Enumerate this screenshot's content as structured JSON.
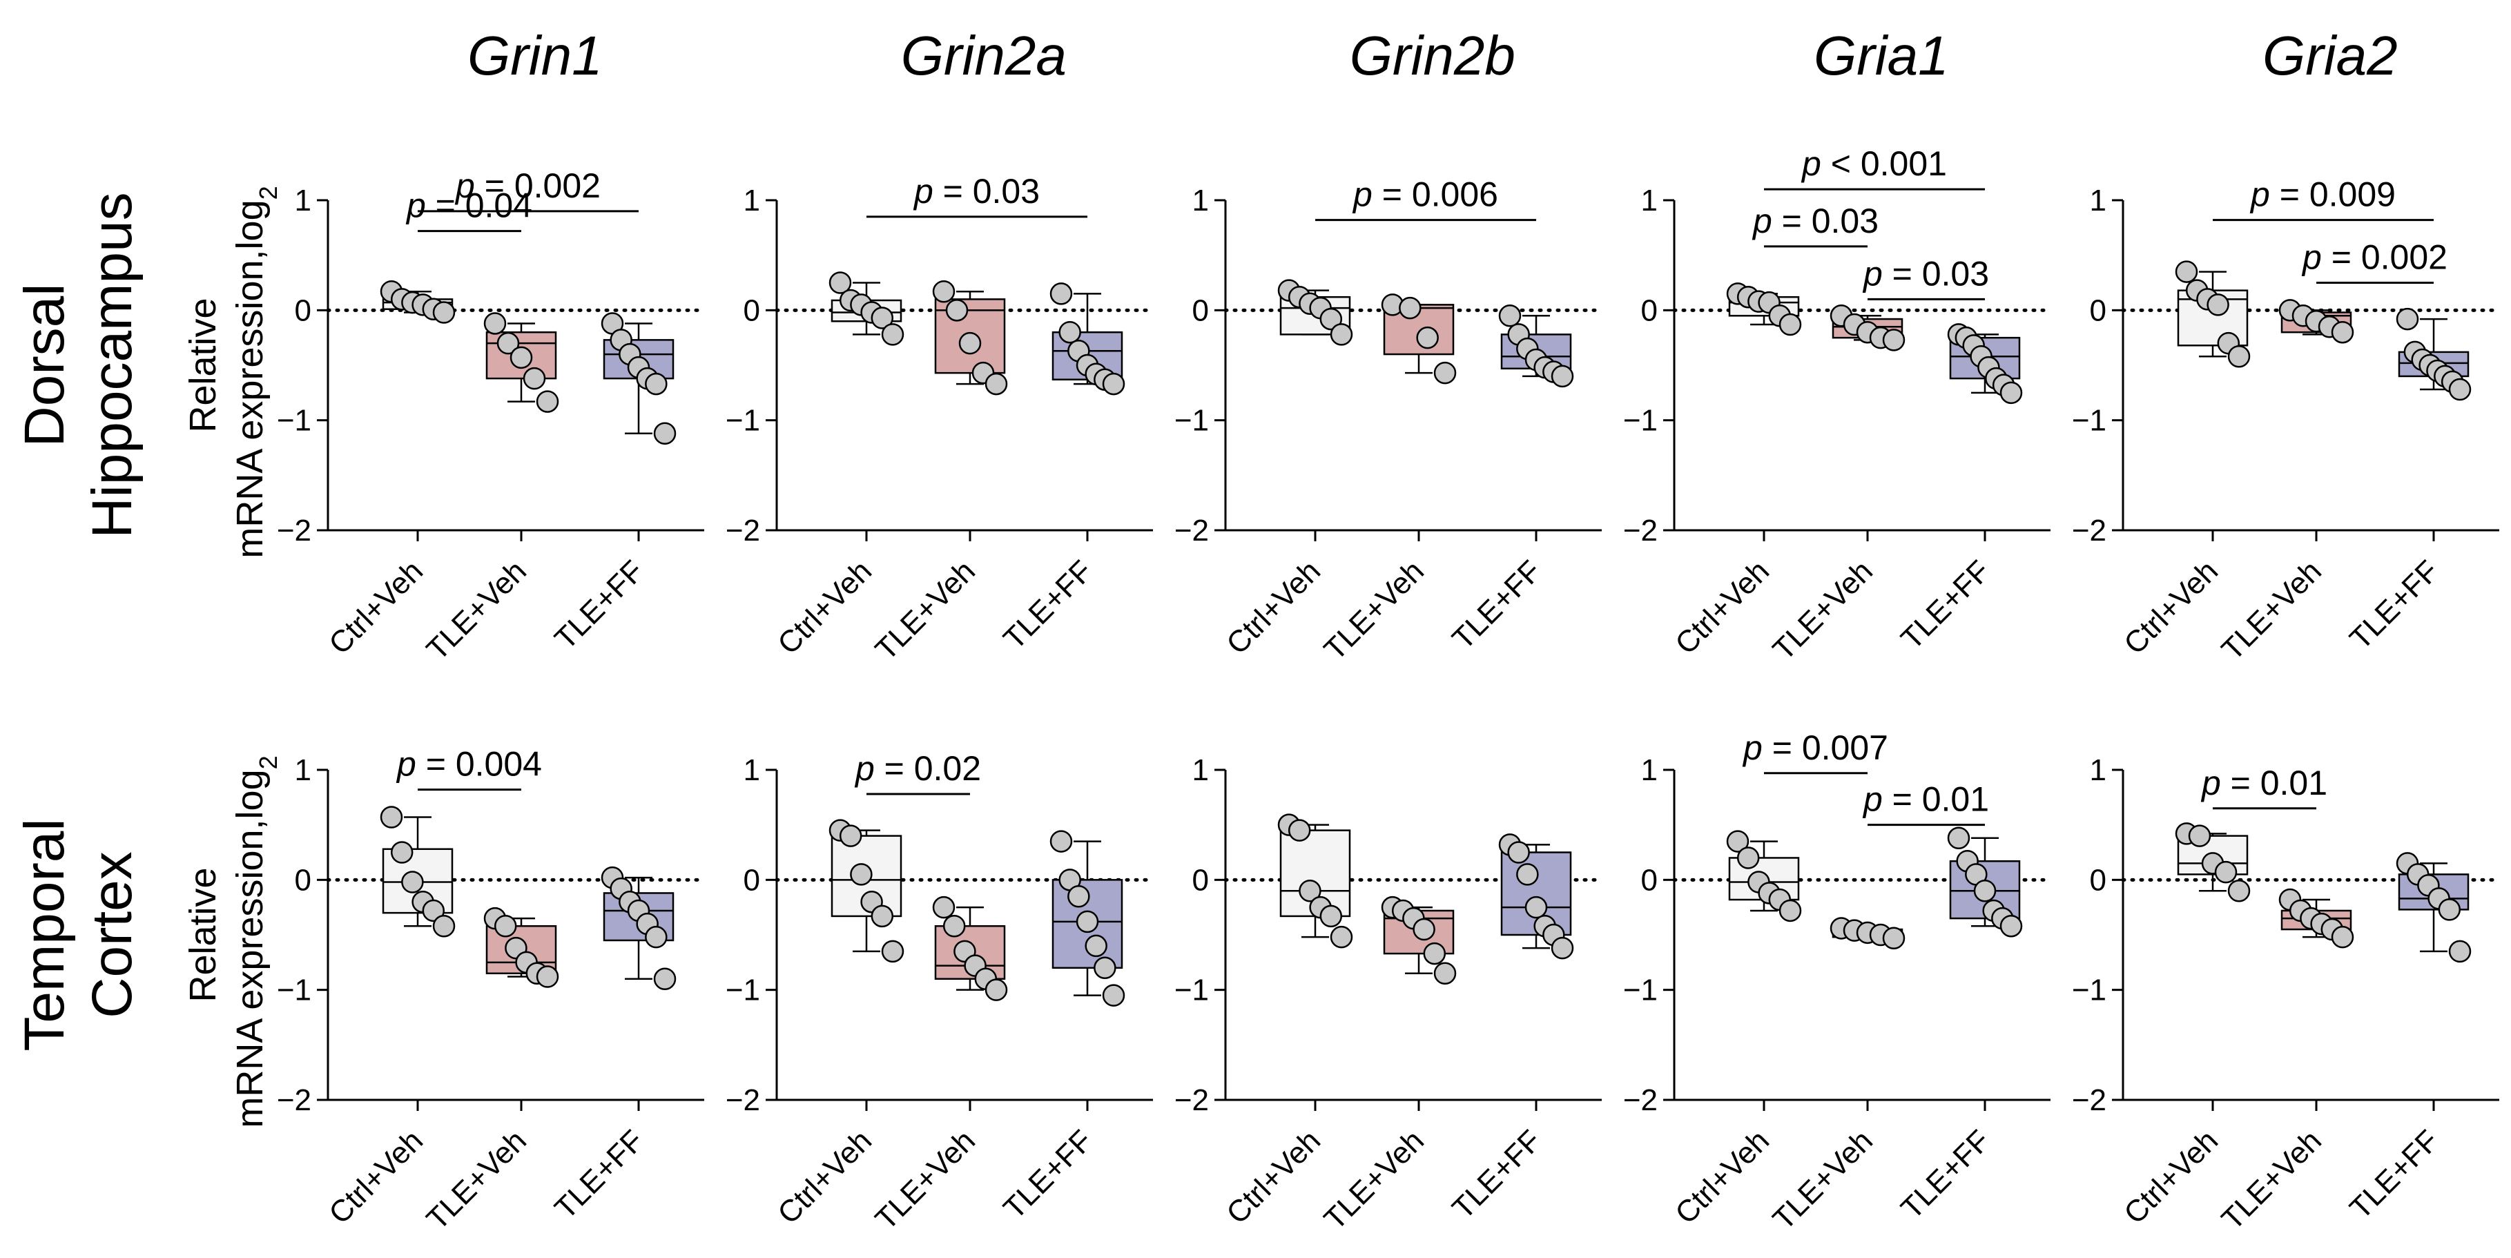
{
  "colors": {
    "Ctrl+Veh": "#f4f4f4",
    "TLE+Veh": "#d8aaaa",
    "TLE+FF": "#a8a8cc",
    "dot_fill": "#c8c8c8",
    "stroke": "#000000"
  },
  "genes": [
    "Grin1",
    "Grin2a",
    "Grin2b",
    "Gria1",
    "Gria2"
  ],
  "rows": [
    {
      "label_line1": "Dorsal",
      "label_line2": "Hippocampus"
    },
    {
      "label_line1": "Temporal",
      "label_line2": "Cortex"
    }
  ],
  "ylabel_line1": "Relative",
  "ylabel_line2": "mRNA expression,log",
  "ylabel_sub": "2",
  "p_italic": "p",
  "chart_data": [
    {
      "type": "box",
      "row": "Dorsal Hippocampus",
      "gene": "Grin1",
      "categories": [
        "Ctrl+Veh",
        "TLE+Veh",
        "TLE+FF"
      ],
      "ylim": [
        -2,
        1
      ],
      "yticks": [
        1,
        0,
        -1,
        -2
      ],
      "reference_line": 0,
      "groups": [
        {
          "name": "Ctrl+Veh",
          "q1": 0.01,
          "median": 0.07,
          "q3": 0.1,
          "min": -0.02,
          "max": 0.17,
          "points": [
            0.17,
            0.1,
            0.07,
            0.05,
            0.01,
            -0.02
          ]
        },
        {
          "name": "TLE+Veh",
          "q1": -0.62,
          "median": -0.3,
          "q3": -0.2,
          "min": -0.83,
          "max": -0.12,
          "points": [
            -0.12,
            -0.3,
            -0.43,
            -0.62,
            -0.83
          ]
        },
        {
          "name": "TLE+FF",
          "q1": -0.62,
          "median": -0.4,
          "q3": -0.27,
          "min": -1.12,
          "max": -0.12,
          "points": [
            -0.12,
            -0.27,
            -0.4,
            -0.52,
            -0.62,
            -0.67,
            -1.12
          ]
        }
      ],
      "comparisons": [
        {
          "from": "Ctrl+Veh",
          "to": "TLE+Veh",
          "label": "= 0.04",
          "level": 0.72
        },
        {
          "from": "Ctrl+Veh",
          "to": "TLE+FF",
          "label": "= 0.002",
          "level": 0.9
        }
      ]
    },
    {
      "type": "box",
      "row": "Dorsal Hippocampus",
      "gene": "Grin2a",
      "categories": [
        "Ctrl+Veh",
        "TLE+Veh",
        "TLE+FF"
      ],
      "ylim": [
        -2,
        1
      ],
      "yticks": [
        1,
        0,
        -1,
        -2
      ],
      "reference_line": 0,
      "groups": [
        {
          "name": "Ctrl+Veh",
          "q1": -0.1,
          "median": -0.02,
          "q3": 0.09,
          "min": -0.22,
          "max": 0.25,
          "points": [
            0.25,
            0.09,
            0.05,
            -0.02,
            -0.07,
            -0.22
          ]
        },
        {
          "name": "TLE+Veh",
          "q1": -0.57,
          "median": 0.0,
          "q3": 0.1,
          "min": -0.67,
          "max": 0.17,
          "points": [
            0.17,
            0.0,
            -0.3,
            -0.57,
            -0.67
          ]
        },
        {
          "name": "TLE+FF",
          "q1": -0.63,
          "median": -0.37,
          "q3": -0.2,
          "min": -0.67,
          "max": 0.15,
          "points": [
            0.15,
            -0.2,
            -0.37,
            -0.5,
            -0.58,
            -0.63,
            -0.67
          ]
        }
      ],
      "comparisons": [
        {
          "from": "Ctrl+Veh",
          "to": "TLE+FF",
          "label": "= 0.03",
          "level": 0.85
        }
      ]
    },
    {
      "type": "box",
      "row": "Dorsal Hippocampus",
      "gene": "Grin2b",
      "categories": [
        "Ctrl+Veh",
        "TLE+Veh",
        "TLE+FF"
      ],
      "ylim": [
        -2,
        1
      ],
      "yticks": [
        1,
        0,
        -1,
        -2
      ],
      "reference_line": 0,
      "groups": [
        {
          "name": "Ctrl+Veh",
          "q1": -0.22,
          "median": 0.02,
          "q3": 0.12,
          "min": -0.22,
          "max": 0.18,
          "points": [
            0.18,
            0.12,
            0.06,
            0.02,
            -0.08,
            -0.22
          ]
        },
        {
          "name": "TLE+Veh",
          "q1": -0.4,
          "median": 0.02,
          "q3": 0.05,
          "min": -0.57,
          "max": 0.05,
          "points": [
            0.05,
            0.02,
            -0.25,
            -0.57
          ]
        },
        {
          "name": "TLE+FF",
          "q1": -0.53,
          "median": -0.42,
          "q3": -0.22,
          "min": -0.6,
          "max": -0.05,
          "points": [
            -0.05,
            -0.22,
            -0.35,
            -0.45,
            -0.52,
            -0.56,
            -0.6
          ]
        }
      ],
      "comparisons": [
        {
          "from": "Ctrl+Veh",
          "to": "TLE+FF",
          "label": "= 0.006",
          "level": 0.82
        }
      ]
    },
    {
      "type": "box",
      "row": "Dorsal Hippocampus",
      "gene": "Gria1",
      "categories": [
        "Ctrl+Veh",
        "TLE+Veh",
        "TLE+FF"
      ],
      "ylim": [
        -2,
        1
      ],
      "yticks": [
        1,
        0,
        -1,
        -2
      ],
      "reference_line": 0,
      "groups": [
        {
          "name": "Ctrl+Veh",
          "q1": -0.05,
          "median": 0.07,
          "q3": 0.12,
          "min": -0.13,
          "max": 0.15,
          "points": [
            0.15,
            0.12,
            0.08,
            0.07,
            -0.05,
            -0.13
          ]
        },
        {
          "name": "TLE+Veh",
          "q1": -0.25,
          "median": -0.15,
          "q3": -0.08,
          "min": -0.27,
          "max": -0.05,
          "points": [
            -0.05,
            -0.13,
            -0.2,
            -0.25,
            -0.27
          ]
        },
        {
          "name": "TLE+FF",
          "q1": -0.62,
          "median": -0.42,
          "q3": -0.25,
          "min": -0.75,
          "max": -0.22,
          "points": [
            -0.22,
            -0.25,
            -0.32,
            -0.42,
            -0.52,
            -0.62,
            -0.68,
            -0.75
          ]
        }
      ],
      "comparisons": [
        {
          "from": "Ctrl+Veh",
          "to": "TLE+Veh",
          "label": "= 0.03",
          "level": 0.58
        },
        {
          "from": "TLE+Veh",
          "to": "TLE+FF",
          "label": "= 0.03",
          "level": 0.1
        },
        {
          "from": "Ctrl+Veh",
          "to": "TLE+FF",
          "label": "< 0.001",
          "level": 1.1
        }
      ]
    },
    {
      "type": "box",
      "row": "Dorsal Hippocampus",
      "gene": "Gria2",
      "categories": [
        "Ctrl+Veh",
        "TLE+Veh",
        "TLE+FF"
      ],
      "ylim": [
        -2,
        1
      ],
      "yticks": [
        1,
        0,
        -1,
        -2
      ],
      "reference_line": 0,
      "groups": [
        {
          "name": "Ctrl+Veh",
          "q1": -0.32,
          "median": 0.1,
          "q3": 0.18,
          "min": -0.42,
          "max": 0.35,
          "points": [
            0.35,
            0.18,
            0.1,
            0.05,
            -0.3,
            -0.42
          ]
        },
        {
          "name": "TLE+Veh",
          "q1": -0.2,
          "median": -0.05,
          "q3": -0.02,
          "min": -0.22,
          "max": 0.0,
          "points": [
            0.0,
            -0.05,
            -0.1,
            -0.15,
            -0.2
          ]
        },
        {
          "name": "TLE+FF",
          "q1": -0.6,
          "median": -0.48,
          "q3": -0.38,
          "min": -0.72,
          "max": -0.08,
          "points": [
            -0.08,
            -0.38,
            -0.45,
            -0.5,
            -0.55,
            -0.6,
            -0.65,
            -0.72
          ]
        }
      ],
      "comparisons": [
        {
          "from": "Ctrl+Veh",
          "to": "TLE+FF",
          "label": "= 0.009",
          "level": 0.82
        },
        {
          "from": "TLE+Veh",
          "to": "TLE+FF",
          "label": "= 0.002",
          "level": 0.25
        }
      ]
    },
    {
      "type": "box",
      "row": "Temporal Cortex",
      "gene": "Grin1",
      "categories": [
        "Ctrl+Veh",
        "TLE+Veh",
        "TLE+FF"
      ],
      "ylim": [
        -2,
        1
      ],
      "yticks": [
        1,
        0,
        -1,
        -2
      ],
      "reference_line": 0,
      "groups": [
        {
          "name": "Ctrl+Veh",
          "q1": -0.3,
          "median": -0.02,
          "q3": 0.28,
          "min": -0.42,
          "max": 0.57,
          "points": [
            0.57,
            0.25,
            -0.02,
            -0.2,
            -0.28,
            -0.42
          ]
        },
        {
          "name": "TLE+Veh",
          "q1": -0.85,
          "median": -0.75,
          "q3": -0.42,
          "min": -0.88,
          "max": -0.35,
          "points": [
            -0.35,
            -0.42,
            -0.62,
            -0.75,
            -0.85,
            -0.88
          ]
        },
        {
          "name": "TLE+FF",
          "q1": -0.55,
          "median": -0.28,
          "q3": -0.12,
          "min": -0.9,
          "max": 0.02,
          "points": [
            0.02,
            -0.08,
            -0.2,
            -0.28,
            -0.4,
            -0.52,
            -0.9
          ]
        }
      ],
      "comparisons": [
        {
          "from": "Ctrl+Veh",
          "to": "TLE+Veh",
          "label": "= 0.004",
          "level": 0.82
        }
      ]
    },
    {
      "type": "box",
      "row": "Temporal Cortex",
      "gene": "Grin2a",
      "categories": [
        "Ctrl+Veh",
        "TLE+Veh",
        "TLE+FF"
      ],
      "ylim": [
        -2,
        1
      ],
      "yticks": [
        1,
        0,
        -1,
        -2
      ],
      "reference_line": 0,
      "groups": [
        {
          "name": "Ctrl+Veh",
          "q1": -0.33,
          "median": 0.0,
          "q3": 0.4,
          "min": -0.65,
          "max": 0.45,
          "points": [
            0.45,
            0.4,
            0.05,
            -0.2,
            -0.33,
            -0.65
          ]
        },
        {
          "name": "TLE+Veh",
          "q1": -0.9,
          "median": -0.78,
          "q3": -0.42,
          "min": -1.0,
          "max": -0.25,
          "points": [
            -0.25,
            -0.42,
            -0.65,
            -0.78,
            -0.9,
            -1.0
          ]
        },
        {
          "name": "TLE+FF",
          "q1": -0.8,
          "median": -0.38,
          "q3": 0.0,
          "min": -1.05,
          "max": 0.35,
          "points": [
            0.35,
            0.0,
            -0.15,
            -0.38,
            -0.6,
            -0.8,
            -1.05
          ]
        }
      ],
      "comparisons": [
        {
          "from": "Ctrl+Veh",
          "to": "TLE+Veh",
          "label": "= 0.02",
          "level": 0.78
        }
      ]
    },
    {
      "type": "box",
      "row": "Temporal Cortex",
      "gene": "Grin2b",
      "categories": [
        "Ctrl+Veh",
        "TLE+Veh",
        "TLE+FF"
      ],
      "ylim": [
        -2,
        1
      ],
      "yticks": [
        1,
        0,
        -1,
        -2
      ],
      "reference_line": 0,
      "groups": [
        {
          "name": "Ctrl+Veh",
          "q1": -0.33,
          "median": -0.1,
          "q3": 0.45,
          "min": -0.52,
          "max": 0.5,
          "points": [
            0.5,
            0.45,
            -0.1,
            -0.25,
            -0.33,
            -0.52
          ]
        },
        {
          "name": "TLE+Veh",
          "q1": -0.67,
          "median": -0.35,
          "q3": -0.28,
          "min": -0.85,
          "max": -0.25,
          "points": [
            -0.25,
            -0.28,
            -0.35,
            -0.45,
            -0.67,
            -0.85
          ]
        },
        {
          "name": "TLE+FF",
          "q1": -0.5,
          "median": -0.25,
          "q3": 0.25,
          "min": -0.62,
          "max": 0.32,
          "points": [
            0.32,
            0.25,
            0.05,
            -0.25,
            -0.42,
            -0.5,
            -0.62
          ]
        }
      ],
      "comparisons": []
    },
    {
      "type": "box",
      "row": "Temporal Cortex",
      "gene": "Gria1",
      "categories": [
        "Ctrl+Veh",
        "TLE+Veh",
        "TLE+FF"
      ],
      "ylim": [
        -2,
        1
      ],
      "yticks": [
        1,
        0,
        -1,
        -2
      ],
      "reference_line": 0,
      "groups": [
        {
          "name": "Ctrl+Veh",
          "q1": -0.18,
          "median": -0.02,
          "q3": 0.2,
          "min": -0.28,
          "max": 0.35,
          "points": [
            0.35,
            0.2,
            -0.02,
            -0.12,
            -0.18,
            -0.28
          ]
        },
        {
          "name": "TLE+Veh",
          "q1": -0.52,
          "median": -0.48,
          "q3": -0.45,
          "min": -0.53,
          "max": -0.44,
          "points": [
            -0.44,
            -0.46,
            -0.48,
            -0.5,
            -0.53
          ]
        },
        {
          "name": "TLE+FF",
          "q1": -0.35,
          "median": -0.1,
          "q3": 0.17,
          "min": -0.42,
          "max": 0.38,
          "points": [
            0.38,
            0.17,
            0.05,
            -0.1,
            -0.28,
            -0.35,
            -0.42
          ]
        }
      ],
      "comparisons": [
        {
          "from": "Ctrl+Veh",
          "to": "TLE+Veh",
          "label": "= 0.007",
          "level": 0.97
        },
        {
          "from": "TLE+Veh",
          "to": "TLE+FF",
          "label": "= 0.01",
          "level": 0.5
        }
      ]
    },
    {
      "type": "box",
      "row": "Temporal Cortex",
      "gene": "Gria2",
      "categories": [
        "Ctrl+Veh",
        "TLE+Veh",
        "TLE+FF"
      ],
      "ylim": [
        -2,
        1
      ],
      "yticks": [
        1,
        0,
        -1,
        -2
      ],
      "reference_line": 0,
      "groups": [
        {
          "name": "Ctrl+Veh",
          "q1": 0.05,
          "median": 0.15,
          "q3": 0.4,
          "min": -0.1,
          "max": 0.42,
          "points": [
            0.42,
            0.4,
            0.15,
            0.07,
            -0.1
          ]
        },
        {
          "name": "TLE+Veh",
          "q1": -0.45,
          "median": -0.35,
          "q3": -0.28,
          "min": -0.52,
          "max": -0.18,
          "points": [
            -0.18,
            -0.28,
            -0.35,
            -0.4,
            -0.45,
            -0.52
          ]
        },
        {
          "name": "TLE+FF",
          "q1": -0.27,
          "median": -0.17,
          "q3": 0.05,
          "min": -0.65,
          "max": 0.15,
          "points": [
            0.15,
            0.05,
            -0.05,
            -0.17,
            -0.27,
            -0.65
          ]
        }
      ],
      "comparisons": [
        {
          "from": "Ctrl+Veh",
          "to": "TLE+Veh",
          "label": "= 0.01",
          "level": 0.65
        }
      ]
    }
  ]
}
